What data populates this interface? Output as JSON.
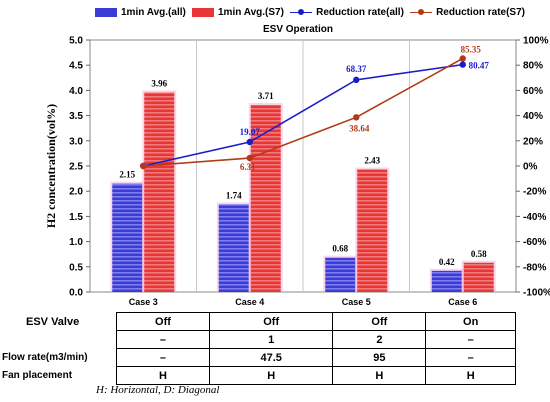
{
  "legend": {
    "bar_all": "1min Avg.(all)",
    "bar_s7": "1min Avg.(S7)",
    "line_all": "Reduction rate(all)",
    "line_s7": "Reduction rate(S7)"
  },
  "colors": {
    "bar_all": "#3b3bd6",
    "bar_s7": "#e83535",
    "line_all": "#1c1ccc",
    "line_s7": "#b23a17"
  },
  "chart_data": {
    "type": "bar",
    "title": "ESV Operation",
    "categories": [
      "Case 3",
      "Case 4",
      "Case 5",
      "Case 6"
    ],
    "ylabel": "H2 concentration(vol%)",
    "ylim": [
      0,
      5
    ],
    "y2lim": [
      -100,
      100
    ],
    "yticks": [
      "0.0",
      "0.5",
      "1.0",
      "1.5",
      "2.0",
      "2.5",
      "3.0",
      "3.5",
      "4.0",
      "4.5",
      "5.0"
    ],
    "y2ticks": [
      "-100%",
      "-80%",
      "-60%",
      "-40%",
      "-20%",
      "0%",
      "20%",
      "40%",
      "60%",
      "80%",
      "100%"
    ],
    "series": [
      {
        "name": "1min Avg.(all)",
        "kind": "bar",
        "axis": "left",
        "values": [
          2.15,
          1.74,
          0.68,
          0.42
        ],
        "labels": [
          "2.15",
          "1.74",
          "0.68",
          "0.42"
        ]
      },
      {
        "name": "1min Avg.(S7)",
        "kind": "bar",
        "axis": "left",
        "values": [
          3.96,
          3.71,
          2.43,
          0.58
        ],
        "labels": [
          "3.96",
          "3.71",
          "2.43",
          "0.58"
        ]
      },
      {
        "name": "Reduction rate(all)",
        "kind": "line",
        "axis": "right",
        "values": [
          0,
          19.07,
          68.37,
          80.47
        ],
        "labels": [
          "",
          "19.07",
          "68.37",
          "80.47"
        ]
      },
      {
        "name": "Reduction rate(S7)",
        "kind": "line",
        "axis": "right",
        "values": [
          0,
          6.31,
          38.64,
          85.35
        ],
        "labels": [
          "",
          "6.31",
          "38.64",
          "85.35"
        ]
      }
    ],
    "grid": false,
    "legend_position": "top"
  },
  "conditions": {
    "rows": [
      {
        "label": "ESV Valve",
        "values": [
          "Off",
          "Off",
          "Off",
          "On"
        ]
      },
      {
        "label": "",
        "values": [
          "–",
          "1",
          "2",
          "–"
        ]
      },
      {
        "label": "Flow rate(m3/min)",
        "values": [
          "–",
          "47.5",
          "95",
          "–"
        ]
      },
      {
        "label": "Fan placement",
        "values": [
          "H",
          "H",
          "H",
          "H"
        ]
      }
    ]
  },
  "footnote": "H: Horizontal, D: Diagonal"
}
